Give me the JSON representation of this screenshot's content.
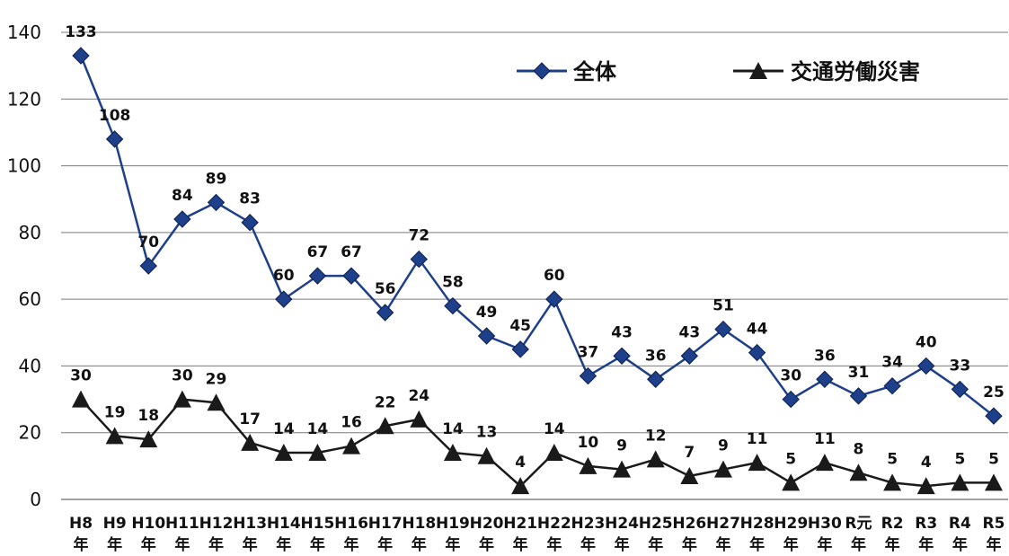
{
  "chart_data": {
    "type": "line",
    "title": "",
    "xlabel": "",
    "ylabel": "",
    "ylim": [
      0,
      140
    ],
    "yticks": [
      0,
      20,
      40,
      60,
      80,
      100,
      120,
      140
    ],
    "grid": true,
    "legend_position": "top-right",
    "categories": [
      {
        "top": "H8",
        "bottom": "年"
      },
      {
        "top": "H9",
        "bottom": "年"
      },
      {
        "top": "H10",
        "bottom": "年"
      },
      {
        "top": "H11",
        "bottom": "年"
      },
      {
        "top": "H12",
        "bottom": "年"
      },
      {
        "top": "H13",
        "bottom": "年"
      },
      {
        "top": "H14",
        "bottom": "年"
      },
      {
        "top": "H15",
        "bottom": "年"
      },
      {
        "top": "H16",
        "bottom": "年"
      },
      {
        "top": "H17",
        "bottom": "年"
      },
      {
        "top": "H18",
        "bottom": "年"
      },
      {
        "top": "H19",
        "bottom": "年"
      },
      {
        "top": "H20",
        "bottom": "年"
      },
      {
        "top": "H21",
        "bottom": "年"
      },
      {
        "top": "H22",
        "bottom": "年"
      },
      {
        "top": "H23",
        "bottom": "年"
      },
      {
        "top": "H24",
        "bottom": "年"
      },
      {
        "top": "H25",
        "bottom": "年"
      },
      {
        "top": "H26",
        "bottom": "年"
      },
      {
        "top": "H27",
        "bottom": "年"
      },
      {
        "top": "H28",
        "bottom": "年"
      },
      {
        "top": "H29",
        "bottom": "年"
      },
      {
        "top": "H30",
        "bottom": "年"
      },
      {
        "top": "R元",
        "bottom": "年"
      },
      {
        "top": "R2",
        "bottom": "年"
      },
      {
        "top": "R3",
        "bottom": "年"
      },
      {
        "top": "R4",
        "bottom": "年"
      },
      {
        "top": "R5",
        "bottom": "年"
      }
    ],
    "series": [
      {
        "name": "全体",
        "marker": "diamond",
        "color": "#1e3f8a",
        "values": [
          133,
          108,
          70,
          84,
          89,
          83,
          60,
          67,
          67,
          56,
          72,
          58,
          49,
          45,
          60,
          37,
          43,
          36,
          43,
          51,
          44,
          30,
          36,
          31,
          34,
          40,
          33,
          25
        ]
      },
      {
        "name": "交通労働災害",
        "marker": "triangle",
        "color": "#1a1a1a",
        "values": [
          30,
          19,
          18,
          30,
          29,
          17,
          14,
          14,
          16,
          22,
          24,
          14,
          13,
          4,
          14,
          10,
          9,
          12,
          7,
          9,
          11,
          5,
          11,
          8,
          5,
          4,
          5,
          5
        ]
      }
    ]
  }
}
